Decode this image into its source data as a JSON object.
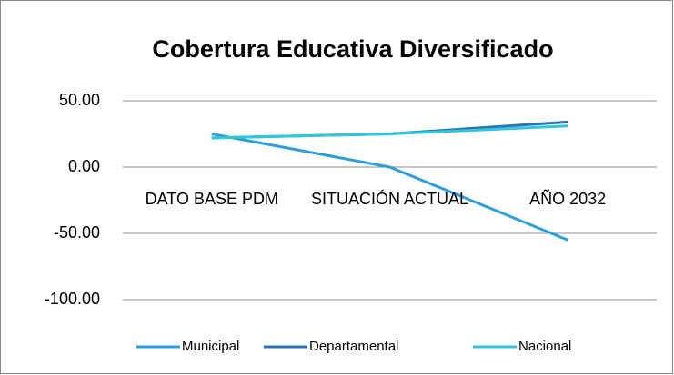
{
  "chart_data": {
    "type": "line",
    "title": "Cobertura Educativa Diversificado",
    "categories": [
      "DATO BASE PDM",
      "SITUACIÓN ACTUAL",
      "AÑO 2032"
    ],
    "series": [
      {
        "name": "Municipal",
        "color": "#2e9fdc",
        "values": [
          25,
          0,
          -55
        ]
      },
      {
        "name": "Departamental",
        "color": "#2b72b8",
        "values": [
          22,
          25,
          34
        ]
      },
      {
        "name": "Nacional",
        "color": "#2ec8d8",
        "values": [
          22,
          25,
          31
        ]
      }
    ],
    "ylim": [
      -100,
      50
    ],
    "yticks": [
      {
        "value": -100,
        "label": "-100.00"
      },
      {
        "value": -50,
        "label": "-50.00"
      },
      {
        "value": 0,
        "label": "0.00"
      },
      {
        "value": 50,
        "label": "50.00"
      }
    ],
    "grid": true,
    "legend": "bottom"
  }
}
